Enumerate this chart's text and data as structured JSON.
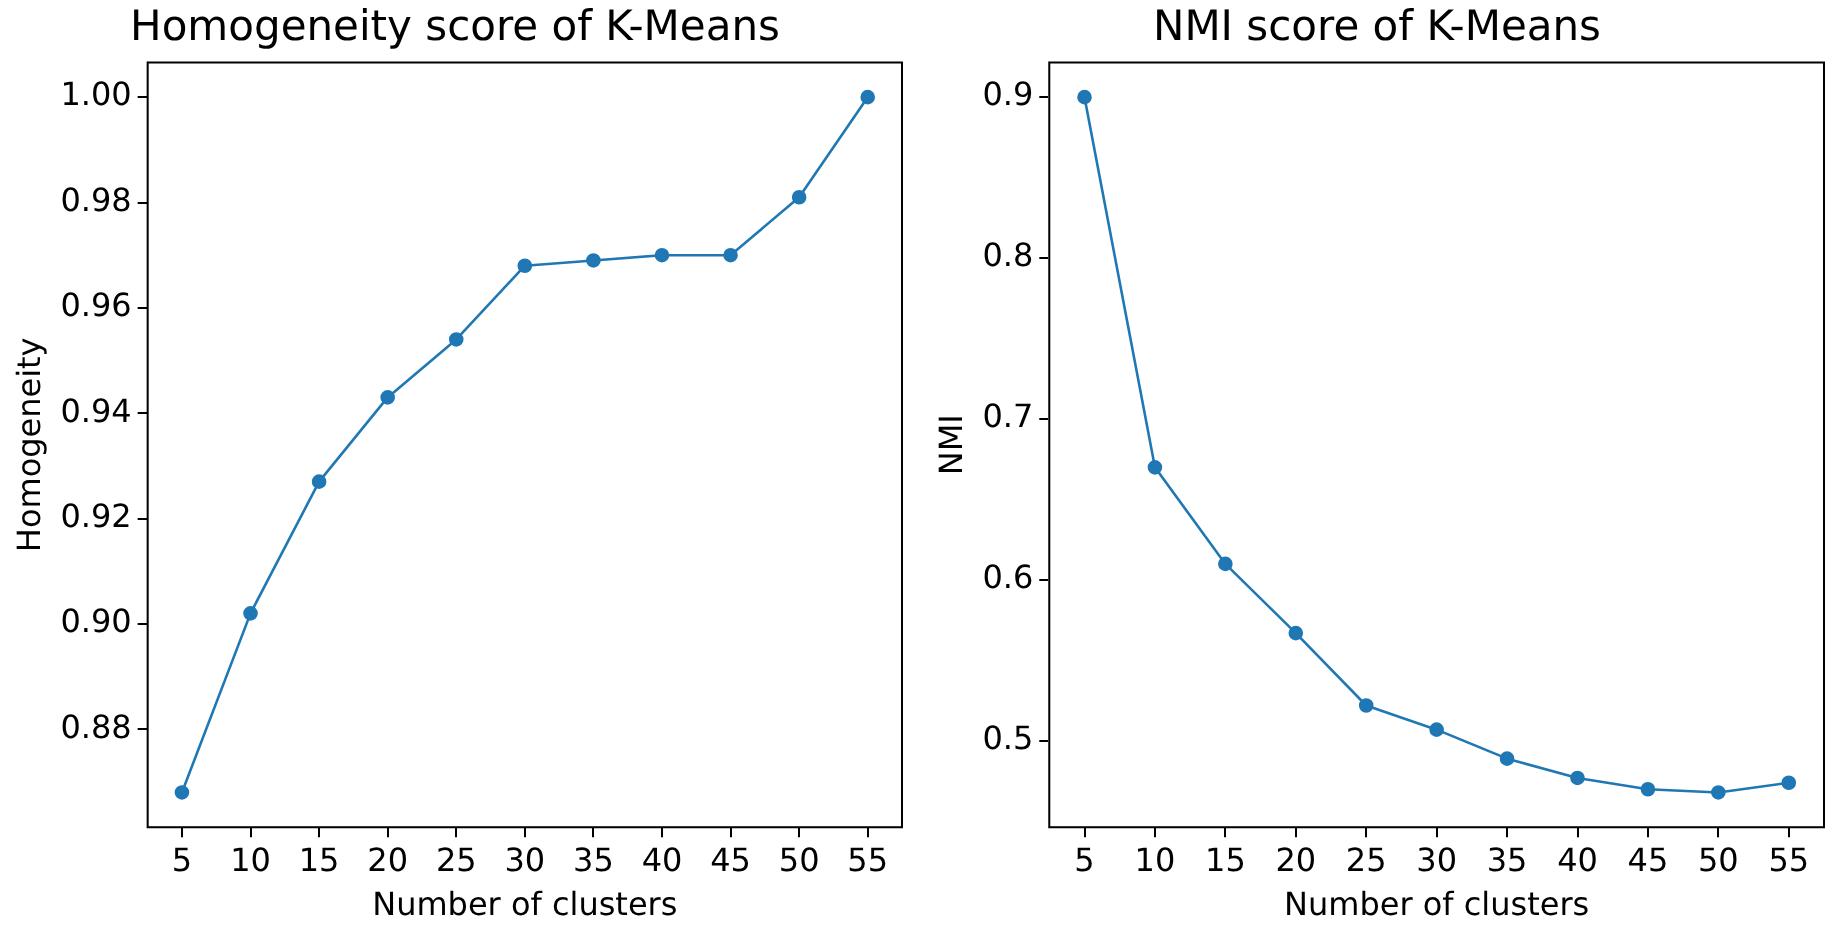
{
  "chart_data": [
    {
      "type": "line",
      "title": "Homogeneity score of K-Means",
      "xlabel": "Number of clusters",
      "ylabel": "Homogeneity",
      "x": [
        5,
        10,
        15,
        20,
        25,
        30,
        35,
        40,
        45,
        50,
        55
      ],
      "series": [
        {
          "color": "#1f77b4",
          "values": [
            0.868,
            0.902,
            0.927,
            0.943,
            0.954,
            0.968,
            0.969,
            0.97,
            0.97,
            0.981,
            1.0
          ]
        }
      ],
      "xlim": [
        2.5,
        57.5
      ],
      "xticks": [
        5,
        10,
        15,
        20,
        25,
        30,
        35,
        40,
        45,
        50,
        55
      ],
      "ylim": [
        0.8614,
        1.0066
      ],
      "yticks": [
        {
          "value": 0.88,
          "label": "0.88"
        },
        {
          "value": 0.9,
          "label": "0.90"
        },
        {
          "value": 0.92,
          "label": "0.92"
        },
        {
          "value": 0.94,
          "label": "0.94"
        },
        {
          "value": 0.96,
          "label": "0.96"
        },
        {
          "value": 0.98,
          "label": "0.98"
        },
        {
          "value": 1.0,
          "label": "1.00"
        }
      ],
      "grid": false,
      "legend": false,
      "marker": "circle",
      "line_style": "solid"
    },
    {
      "type": "line",
      "title": "NMI score of K-Means",
      "xlabel": "Number of clusters",
      "ylabel": "NMI",
      "x": [
        5,
        10,
        15,
        20,
        25,
        30,
        35,
        40,
        45,
        50,
        55
      ],
      "series": [
        {
          "color": "#1f77b4",
          "values": [
            0.9,
            0.67,
            0.61,
            0.567,
            0.522,
            0.507,
            0.489,
            0.477,
            0.47,
            0.468,
            0.474
          ]
        }
      ],
      "xlim": [
        2.5,
        57.5
      ],
      "xticks": [
        5,
        10,
        15,
        20,
        25,
        30,
        35,
        40,
        45,
        50,
        55
      ],
      "ylim": [
        0.4464,
        0.9216
      ],
      "yticks": [
        0.5,
        0.6,
        0.7,
        0.8,
        0.9
      ],
      "grid": false,
      "legend": false,
      "marker": "circle",
      "line_style": "solid"
    }
  ]
}
